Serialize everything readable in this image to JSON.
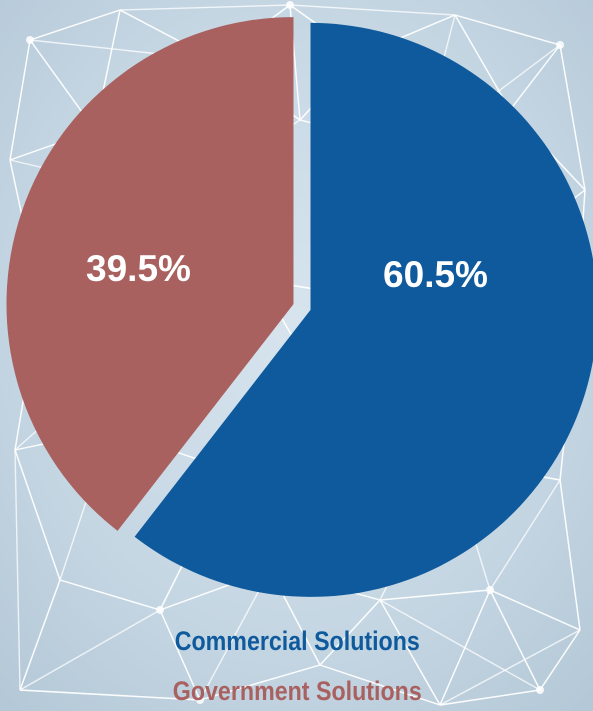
{
  "colors": {
    "commercial": "#0f5a9c",
    "government": "#a8615f",
    "background": "#cfdde8",
    "network_lines": "#ffffff"
  },
  "chart_data": {
    "type": "pie",
    "title": "",
    "exploded": true,
    "slices": [
      {
        "label": "Commercial Solutions",
        "value": 60.5,
        "display": "60.5%",
        "color": "#0f5a9c"
      },
      {
        "label": "Government Solutions",
        "value": 39.5,
        "display": "39.5%",
        "color": "#a8615f"
      }
    ],
    "legend": {
      "placement": "bottom",
      "items": [
        {
          "label": "Commercial Solutions",
          "color": "#0f5a9c"
        },
        {
          "label": "Government Solutions",
          "color": "#a8615f"
        }
      ]
    }
  }
}
